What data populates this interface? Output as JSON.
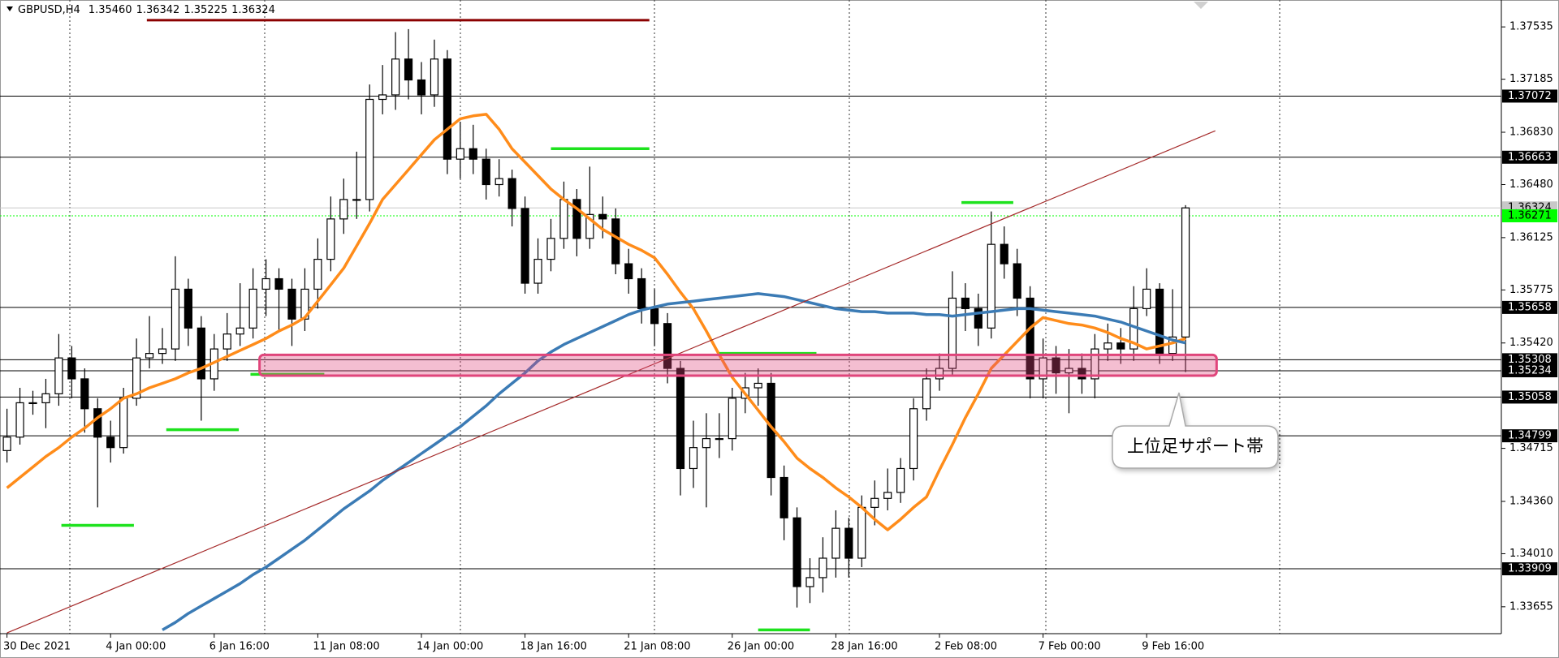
{
  "chart_data": {
    "type": "candlestick",
    "title": "GBPUSD,H4",
    "ohlc_labels": [
      "1.35460",
      "1.36342",
      "1.35225",
      "1.36324"
    ],
    "categories": [
      "30 Dec 2021",
      null,
      null,
      null,
      null,
      null,
      null,
      null,
      "4 Jan 00:00",
      null,
      null,
      null,
      null,
      null,
      null,
      null,
      "6 Jan 16:00",
      null,
      null,
      null,
      null,
      null,
      null,
      null,
      "11 Jan 08:00",
      null,
      null,
      null,
      null,
      null,
      null,
      null,
      "14 Jan 00:00",
      null,
      null,
      null,
      null,
      null,
      null,
      null,
      "18 Jan 16:00",
      null,
      null,
      null,
      null,
      null,
      null,
      null,
      "21 Jan 08:00",
      null,
      null,
      null,
      null,
      null,
      null,
      null,
      "26 Jan 00:00",
      null,
      null,
      null,
      null,
      null,
      null,
      null,
      "28 Jan 16:00",
      null,
      null,
      null,
      null,
      null,
      null,
      null,
      "2 Feb 08:00",
      null,
      null,
      null,
      null,
      null,
      null,
      null,
      "7 Feb 00:00",
      null,
      null,
      null,
      null,
      null,
      null,
      null,
      "9 Feb 16:00",
      null,
      null,
      null
    ],
    "open": [
      1.347,
      1.3479,
      1.3502,
      1.3502,
      1.3508,
      1.3532,
      1.3518,
      1.3498,
      1.3479,
      1.3472,
      1.3505,
      1.3532,
      1.3535,
      1.3538,
      1.3578,
      1.3552,
      1.3518,
      1.3538,
      1.3548,
      1.3552,
      1.3578,
      1.3585,
      1.3578,
      1.3558,
      1.3578,
      1.3598,
      1.3625,
      1.3638,
      1.3638,
      1.3705,
      1.3708,
      1.3732,
      1.3718,
      1.3708,
      1.3732,
      1.3665,
      1.3672,
      1.3665,
      1.3648,
      1.3652,
      1.3632,
      1.3582,
      1.3598,
      1.3612,
      1.3638,
      1.3612,
      1.3628,
      1.3625,
      1.3595,
      1.3585,
      1.3565,
      1.3555,
      1.3525,
      1.3458,
      1.3472,
      1.3478,
      1.3478,
      1.3505,
      1.3512,
      1.3515,
      1.3452,
      1.3425,
      1.3379,
      1.3385,
      1.3398,
      1.3418,
      1.3398,
      1.3432,
      1.3438,
      1.3442,
      1.3458,
      1.3498,
      1.3518,
      1.3525,
      1.3572,
      1.3565,
      1.3552,
      1.3608,
      1.3595,
      1.3572,
      1.3518,
      1.3532,
      1.3522,
      1.3525,
      1.3518,
      1.3538,
      1.3542,
      1.3538,
      1.3565,
      1.3578,
      1.3535,
      1.3546
    ],
    "high": [
      1.3498,
      1.3512,
      1.351,
      1.3518,
      1.3548,
      1.354,
      1.3525,
      1.3505,
      1.349,
      1.3512,
      1.3545,
      1.356,
      1.3552,
      1.36,
      1.3585,
      1.356,
      1.3548,
      1.3562,
      1.3582,
      1.3592,
      1.3598,
      1.3592,
      1.3585,
      1.3592,
      1.3612,
      1.364,
      1.3652,
      1.367,
      1.3715,
      1.3728,
      1.375,
      1.3752,
      1.373,
      1.3745,
      1.3738,
      1.369,
      1.3688,
      1.3672,
      1.3665,
      1.3658,
      1.364,
      1.3612,
      1.3625,
      1.365,
      1.3645,
      1.366,
      1.364,
      1.3632,
      1.3605,
      1.3592,
      1.3578,
      1.3562,
      1.353,
      1.349,
      1.3495,
      1.3495,
      1.3512,
      1.3522,
      1.3525,
      1.3522,
      1.346,
      1.3432,
      1.3398,
      1.3412,
      1.343,
      1.3425,
      1.344,
      1.345,
      1.3458,
      1.3465,
      1.3505,
      1.3525,
      1.3535,
      1.359,
      1.3582,
      1.3575,
      1.363,
      1.362,
      1.3605,
      1.358,
      1.3545,
      1.354,
      1.3538,
      1.3535,
      1.3548,
      1.3555,
      1.3552,
      1.358,
      1.3592,
      1.3582,
      1.3578,
      1.36342
    ],
    "low": [
      1.3462,
      1.3474,
      1.3494,
      1.3485,
      1.35,
      1.3505,
      1.3482,
      1.3432,
      1.3462,
      1.3468,
      1.35,
      1.3525,
      1.3528,
      1.353,
      1.354,
      1.349,
      1.351,
      1.353,
      1.354,
      1.3545,
      1.356,
      1.355,
      1.354,
      1.355,
      1.3565,
      1.359,
      1.3615,
      1.3625,
      1.363,
      1.3695,
      1.3698,
      1.3705,
      1.3695,
      1.37,
      1.3655,
      1.3652,
      1.3655,
      1.3638,
      1.364,
      1.362,
      1.3575,
      1.3575,
      1.359,
      1.3605,
      1.36,
      1.3605,
      1.3612,
      1.3588,
      1.3575,
      1.3555,
      1.354,
      1.3515,
      1.344,
      1.3445,
      1.3432,
      1.3465,
      1.347,
      1.3495,
      1.35,
      1.344,
      1.341,
      1.3365,
      1.3368,
      1.3375,
      1.3385,
      1.3385,
      1.3392,
      1.342,
      1.343,
      1.3435,
      1.345,
      1.349,
      1.351,
      1.352,
      1.355,
      1.354,
      1.3545,
      1.3585,
      1.356,
      1.3505,
      1.3505,
      1.3508,
      1.3495,
      1.3508,
      1.3505,
      1.353,
      1.3528,
      1.353,
      1.356,
      1.3528,
      1.353,
      1.35225
    ],
    "close": [
      1.3479,
      1.3502,
      1.3502,
      1.3508,
      1.3532,
      1.3518,
      1.3498,
      1.3479,
      1.3472,
      1.3505,
      1.3532,
      1.3535,
      1.3538,
      1.3578,
      1.3552,
      1.3518,
      1.3538,
      1.3548,
      1.3552,
      1.3578,
      1.3585,
      1.3578,
      1.3558,
      1.3578,
      1.3598,
      1.3625,
      1.3638,
      1.3638,
      1.3705,
      1.3708,
      1.3732,
      1.3718,
      1.3708,
      1.3732,
      1.3665,
      1.3672,
      1.3665,
      1.3648,
      1.3652,
      1.3632,
      1.3582,
      1.3598,
      1.3612,
      1.3638,
      1.3612,
      1.3628,
      1.3625,
      1.3595,
      1.3585,
      1.3565,
      1.3555,
      1.3525,
      1.3458,
      1.3472,
      1.3478,
      1.3478,
      1.3505,
      1.3512,
      1.3515,
      1.3452,
      1.3425,
      1.3379,
      1.3385,
      1.3398,
      1.3418,
      1.3398,
      1.3432,
      1.3438,
      1.3442,
      1.3458,
      1.3498,
      1.3518,
      1.3525,
      1.3572,
      1.3565,
      1.3552,
      1.3608,
      1.3595,
      1.3572,
      1.3518,
      1.3532,
      1.3522,
      1.3525,
      1.3518,
      1.3538,
      1.3542,
      1.3538,
      1.3565,
      1.3578,
      1.3535,
      1.3546,
      1.36324
    ],
    "lines": [
      {
        "color": "#ff8c1a",
        "values": [
          1.3445,
          1.3452,
          1.3459,
          1.3466,
          1.3472,
          1.3479,
          1.3485,
          1.3492,
          1.3498,
          1.3505,
          1.3508,
          1.3512,
          1.3515,
          1.3518,
          1.3522,
          1.3525,
          1.3529,
          1.3533,
          1.3537,
          1.3541,
          1.3545,
          1.355,
          1.3554,
          1.3559,
          1.357,
          1.3581,
          1.3592,
          1.3607,
          1.3622,
          1.3638,
          1.3648,
          1.3658,
          1.3668,
          1.3678,
          1.3685,
          1.3692,
          1.3694,
          1.3695,
          1.3685,
          1.3672,
          1.3663,
          1.3654,
          1.3645,
          1.3638,
          1.3632,
          1.3625,
          1.3618,
          1.3613,
          1.3608,
          1.3604,
          1.3599,
          1.3588,
          1.3576,
          1.3565,
          1.355,
          1.3534,
          1.3519,
          1.3508,
          1.3497,
          1.3486,
          1.3476,
          1.3465,
          1.3458,
          1.3452,
          1.3445,
          1.3439,
          1.3432,
          1.3424,
          1.3417,
          1.3424,
          1.3432,
          1.3439,
          1.3457,
          1.3474,
          1.3492,
          1.3508,
          1.3525,
          1.3534,
          1.3543,
          1.3552,
          1.3559,
          1.3557,
          1.3555,
          1.3554,
          1.3552,
          1.3549,
          1.3545,
          1.3542,
          1.3538,
          1.354,
          1.3542,
          1.3545
        ]
      },
      {
        "color": "#3b7bb5",
        "values": [
          null,
          null,
          null,
          null,
          null,
          null,
          null,
          null,
          null,
          null,
          null,
          null,
          1.335,
          1.3355,
          1.3361,
          1.3366,
          1.3371,
          1.3376,
          1.3381,
          1.3387,
          1.3392,
          1.3398,
          1.3404,
          1.341,
          1.3417,
          1.3424,
          1.3431,
          1.3437,
          1.3443,
          1.345,
          1.3456,
          1.3462,
          1.3468,
          1.3474,
          1.348,
          1.3486,
          1.3493,
          1.35,
          1.3508,
          1.3515,
          1.3522,
          1.353,
          1.3536,
          1.3541,
          1.3545,
          1.3549,
          1.3553,
          1.3557,
          1.3561,
          1.3564,
          1.3566,
          1.3568,
          1.3569,
          1.357,
          1.3571,
          1.3572,
          1.3573,
          1.3574,
          1.3575,
          1.3574,
          1.3573,
          1.3571,
          1.3569,
          1.3567,
          1.3565,
          1.3564,
          1.3563,
          1.3563,
          1.3562,
          1.3562,
          1.3562,
          1.3561,
          1.3561,
          1.356,
          1.3561,
          1.3562,
          1.3563,
          1.3564,
          1.3565,
          1.3565,
          1.3564,
          1.3563,
          1.3562,
          1.3561,
          1.356,
          1.3558,
          1.3556,
          1.3553,
          1.355,
          1.3547,
          1.3544,
          1.3542
        ]
      }
    ],
    "ylim": [
      1.33475,
      1.37715
    ],
    "yticks": [
      1.37535,
      1.37185,
      {
        "value": 1.3683,
        "label": "1.36830"
      },
      {
        "value": 1.3648,
        "label": "1.36480"
      },
      1.36125,
      1.35775,
      {
        "value": 1.3542,
        "label": "1.35420"
      },
      1.34715,
      {
        "value": 1.3436,
        "label": "1.34360"
      },
      {
        "value": 1.3401,
        "label": "1.34010"
      },
      1.33655
    ],
    "levels": [
      1.37072,
      1.36663,
      1.35658,
      1.35308,
      1.35234,
      1.35058,
      1.34799,
      1.33909
    ],
    "price_lines": [
      {
        "value": 1.36324,
        "color": "#c8c8c8"
      },
      {
        "value": 1.36271,
        "color": "#00ff00"
      }
    ],
    "trendline": {
      "x": [
        0,
        93.3
      ],
      "values": [
        1.3348,
        1.3684
      ],
      "color": "#a52a2a"
    },
    "resistance": {
      "x": [
        10.8,
        49.6
      ],
      "value": 1.3758,
      "color": "#8b0000"
    },
    "markers": {
      "color": "#1de21d",
      "items": [
        {
          "x": [
            4.2,
            9.8
          ],
          "value": 1.342
        },
        {
          "x": [
            12.3,
            17.9
          ],
          "value": 1.3484
        },
        {
          "x": [
            18.8,
            24.5
          ],
          "value": 1.3521
        },
        {
          "x": [
            42,
            49.6
          ],
          "value": 1.3672
        },
        {
          "x": [
            55,
            62.5
          ],
          "value": 1.3535
        },
        {
          "x": [
            58,
            62
          ],
          "value": 1.335
        },
        {
          "x": [
            73.7,
            77.7
          ],
          "value": 1.3636
        }
      ]
    },
    "zone": {
      "x": [
        19.5,
        93.4
      ],
      "values": [
        1.35234,
        1.35308
      ],
      "color": "#e0457b"
    },
    "annotation": "上位足サポート帯"
  }
}
